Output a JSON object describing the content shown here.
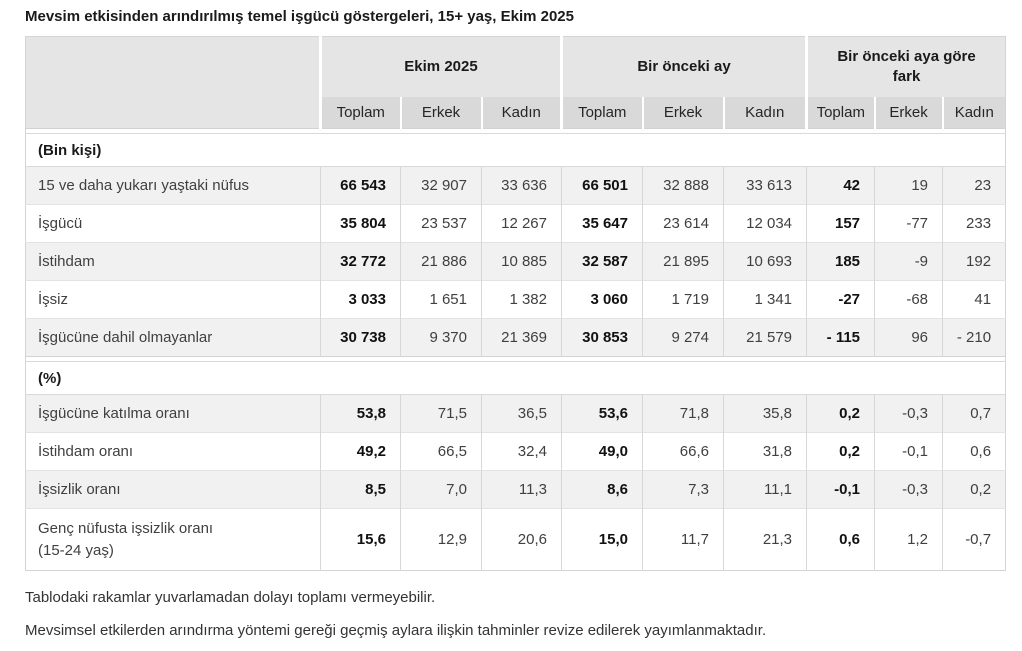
{
  "title": "Mevsim etkisinden arındırılmış temel işgücü göstergeleri, 15+ yaş, Ekim 2025",
  "table": {
    "col_groups": [
      {
        "label": "Ekim 2025"
      },
      {
        "label": "Bir önceki ay"
      },
      {
        "label": "Bir önceki aya göre fark"
      }
    ],
    "sub_headers": [
      "Toplam",
      "Erkek",
      "Kadın",
      "Toplam",
      "Erkek",
      "Kadın",
      "Toplam",
      "Erkek",
      "Kadın"
    ],
    "sections": [
      {
        "header": "(Bin kişi)",
        "rows": [
          {
            "label": "15 ve daha yukarı yaştaki nüfus",
            "values": [
              "66 543",
              "32 907",
              "33 636",
              "66 501",
              "32 888",
              "33 613",
              "42",
              "19",
              "23"
            ]
          },
          {
            "label": "İşgücü",
            "values": [
              "35 804",
              "23 537",
              "12 267",
              "35 647",
              "23 614",
              "12 034",
              "157",
              "-77",
              "233"
            ]
          },
          {
            "label": "İstihdam",
            "values": [
              "32 772",
              "21 886",
              "10 885",
              "32 587",
              "21 895",
              "10 693",
              "185",
              "-9",
              "192"
            ]
          },
          {
            "label": "İşsiz",
            "values": [
              "3 033",
              "1 651",
              "1 382",
              "3 060",
              "1 719",
              "1 341",
              "-27",
              "-68",
              "41"
            ]
          },
          {
            "label": "İşgücüne dahil olmayanlar",
            "values": [
              "30 738",
              "9 370",
              "21 369",
              "30 853",
              "9 274",
              "21 579",
              "- 115",
              "96",
              "- 210"
            ]
          }
        ]
      },
      {
        "header": "(%)",
        "rows": [
          {
            "label": "İşgücüne katılma oranı",
            "values": [
              "53,8",
              "71,5",
              "36,5",
              "53,6",
              "71,8",
              "35,8",
              "0,2",
              "-0,3",
              "0,7"
            ]
          },
          {
            "label": "İstihdam oranı",
            "values": [
              "49,2",
              "66,5",
              "32,4",
              "49,0",
              "66,6",
              "31,8",
              "0,2",
              "-0,1",
              "0,6"
            ]
          },
          {
            "label": "İşsizlik oranı",
            "values": [
              "8,5",
              "7,0",
              "11,3",
              "8,6",
              "7,3",
              "11,1",
              "-0,1",
              "-0,3",
              "0,2"
            ]
          },
          {
            "label": "Genç nüfusta işsizlik oranı\n(15-24 yaş)",
            "values": [
              "15,6",
              "12,9",
              "20,6",
              "15,0",
              "11,7",
              "21,3",
              "0,6",
              "1,2",
              "-0,7"
            ]
          }
        ]
      }
    ]
  },
  "footnotes": [
    "Tablodaki rakamlar yuvarlamadan dolayı toplamı vermeyebilir.",
    "Mevsimsel etkilerden arındırma yöntemi gereği geçmiş aylara ilişkin tahminler revize edilerek yayımlanmaktadır."
  ],
  "colors": {
    "group_header_bg": "#e5e5e5",
    "sub_header_bg": "#d9d9d9",
    "stripe_row_bg": "#f1f1f1",
    "plain_row_bg": "#ffffff",
    "border": "#d7d7d7",
    "text": "#404040",
    "bold_text": "#111111"
  }
}
